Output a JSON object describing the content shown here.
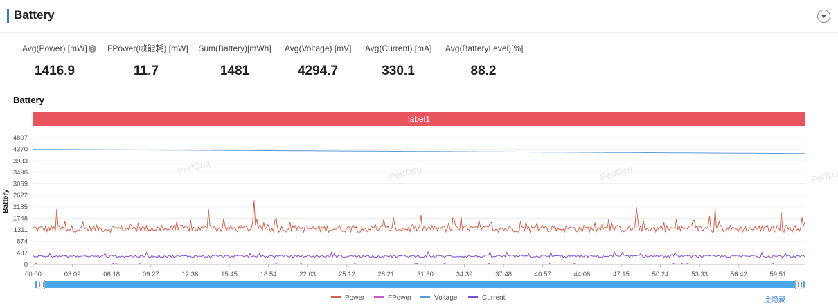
{
  "header": {
    "title": "Battery"
  },
  "stats": [
    {
      "label": "Avg(Power) [mW]",
      "value": "1416.9",
      "help": "?"
    },
    {
      "label": "FPower(帧能耗) [mW]",
      "value": "11.7"
    },
    {
      "label": "Sum(Battery)[mWh]",
      "value": "1481"
    },
    {
      "label": "Avg(Voltage) [mV]",
      "value": "4294.7"
    },
    {
      "label": "Avg(Current) [mA]",
      "value": "330.1"
    },
    {
      "label": "Avg(BatteryLevel)[%]",
      "value": "88.2"
    }
  ],
  "chart": {
    "title": "Battery",
    "label_bar": "label1",
    "watermark": "PerfDog",
    "hide_all": "全隐藏"
  },
  "chart_data": {
    "type": "line",
    "ylabel": "Battery",
    "ylim": [
      0,
      4807
    ],
    "yticks": [
      "4807",
      "4370",
      "3933",
      "3496",
      "3059",
      "2622",
      "2185",
      "1748",
      "1311",
      "874",
      "437",
      "0"
    ],
    "x_ticks": [
      "00:00",
      "03:09",
      "06:18",
      "09:27",
      "12:36",
      "15:45",
      "18:54",
      "22:03",
      "25:12",
      "28:21",
      "31:30",
      "34:39",
      "37:48",
      "40:57",
      "44:06",
      "47:15",
      "50:24",
      "53:33",
      "56:42",
      "59:51"
    ],
    "x_range_seconds": [
      0,
      3720
    ],
    "series": [
      {
        "name": "Power",
        "color": "#d9624a",
        "approx_mean": 1417,
        "approx_min": 1150,
        "approx_max": 2430,
        "spikes": [
          [
            115,
            2100
          ],
          [
            845,
            2100
          ],
          [
            1065,
            2430
          ],
          [
            2910,
            2180
          ],
          [
            3285,
            2130
          ],
          [
            3610,
            1990
          ]
        ]
      },
      {
        "name": "FPower",
        "color": "#c25bc2",
        "approx_value": 12
      },
      {
        "name": "Voltage",
        "color": "#5b9bd5",
        "start": 4370,
        "end": 4210
      },
      {
        "name": "Current",
        "color": "#7b4fd6",
        "approx_mean": 330,
        "approx_min": 230,
        "approx_max": 530
      }
    ],
    "legend_position": "bottom"
  }
}
